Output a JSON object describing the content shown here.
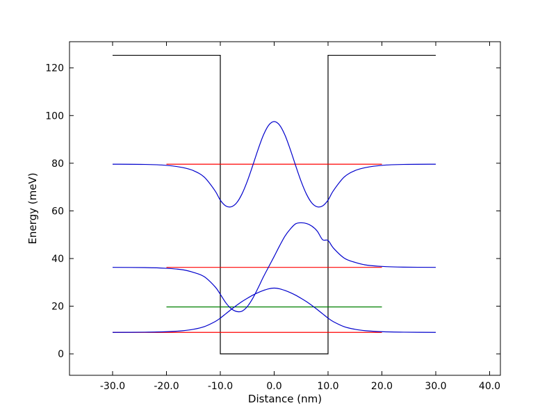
{
  "chart_data": {
    "type": "line",
    "title": "",
    "xlabel": "Distance (nm)",
    "ylabel": "Energy (meV)",
    "xlim": [
      -38,
      42
    ],
    "ylim": [
      -9,
      131
    ],
    "grid": false,
    "legend": "none",
    "x_ticks": [
      -30,
      -20,
      -10,
      0,
      10,
      20,
      30,
      40
    ],
    "x_tick_labels": [
      "-30.0",
      "-20.0",
      "-10.0",
      "0.0",
      "10.0",
      "20.0",
      "30.0",
      "40.0"
    ],
    "y_ticks": [
      0,
      20,
      40,
      60,
      80,
      100,
      120
    ],
    "y_tick_labels": [
      "0",
      "20",
      "40",
      "60",
      "80",
      "100",
      "120"
    ],
    "potential": {
      "color": "#000000",
      "x": [
        -30,
        -10,
        -10,
        10,
        10,
        30
      ],
      "y": [
        125.3,
        125.3,
        0,
        0,
        125.3,
        125.3
      ]
    },
    "levels": [
      {
        "color": "#ff0000",
        "x": [
          -30,
          20
        ],
        "y": 9.0
      },
      {
        "color": "#008000",
        "x": [
          -20,
          20
        ],
        "y": 19.7
      },
      {
        "color": "#ff0000",
        "x": [
          -20,
          20
        ],
        "y": 36.3
      },
      {
        "color": "#ff0000",
        "x": [
          -20,
          20
        ],
        "y": 79.6
      }
    ],
    "wavefunctions": [
      {
        "color": "#0000cc",
        "x": [
          -30,
          -24,
          -20,
          -17,
          -15,
          -13,
          -11,
          -10,
          -9,
          -8,
          -7,
          -6,
          -5,
          -4,
          -3,
          -2,
          -1,
          0,
          1,
          2,
          3,
          4,
          5,
          6,
          7,
          8,
          9,
          10,
          11,
          13,
          15,
          17,
          20,
          24,
          30
        ],
        "y": [
          9.0,
          9.1,
          9.3,
          9.7,
          10.3,
          11.4,
          13.5,
          15.0,
          16.8,
          18.6,
          20.3,
          21.9,
          23.3,
          24.6,
          25.7,
          26.6,
          27.3,
          27.6,
          27.3,
          26.6,
          25.7,
          24.6,
          23.3,
          21.9,
          20.3,
          18.6,
          16.8,
          15.0,
          13.5,
          11.4,
          10.3,
          9.7,
          9.3,
          9.1,
          9.0
        ]
      },
      {
        "color": "#0000cc",
        "x": [
          -30,
          -24,
          -20,
          -17,
          -15,
          -13,
          -11,
          -10,
          -9,
          -8,
          -7,
          -6,
          -5,
          -4,
          -3,
          -2,
          -1,
          0,
          1,
          2,
          3,
          4,
          5,
          6,
          7,
          8,
          9,
          10,
          11,
          13,
          15,
          17,
          20,
          24,
          30
        ],
        "y": [
          36.3,
          36.2,
          35.9,
          35.3,
          34.2,
          32.4,
          28.2,
          25.0,
          21.5,
          19.0,
          17.8,
          17.9,
          19.8,
          23.2,
          27.6,
          32.3,
          36.6,
          40.9,
          45.3,
          49.4,
          52.4,
          54.6,
          55.0,
          54.7,
          53.6,
          51.5,
          47.9,
          47.6,
          44.4,
          40.2,
          38.4,
          37.3,
          36.7,
          36.4,
          36.3
        ]
      },
      {
        "color": "#0000cc",
        "x": [
          -30,
          -24,
          -20,
          -17,
          -15,
          -13,
          -11,
          -10,
          -9,
          -8,
          -7,
          -6,
          -5,
          -4,
          -3,
          -2,
          -1,
          0,
          1,
          2,
          3,
          4,
          5,
          6,
          7,
          8,
          9,
          10,
          11,
          13,
          15,
          17,
          20,
          24,
          30
        ],
        "y": [
          79.6,
          79.5,
          79.1,
          78.2,
          76.9,
          74.2,
          68.5,
          64.5,
          62.1,
          61.7,
          63.3,
          67.0,
          72.4,
          78.9,
          85.7,
          91.8,
          96.0,
          97.5,
          96.0,
          91.8,
          85.7,
          78.9,
          72.4,
          67.0,
          63.3,
          61.7,
          62.1,
          64.5,
          68.5,
          74.2,
          76.9,
          78.2,
          79.1,
          79.5,
          79.6
        ]
      }
    ]
  }
}
